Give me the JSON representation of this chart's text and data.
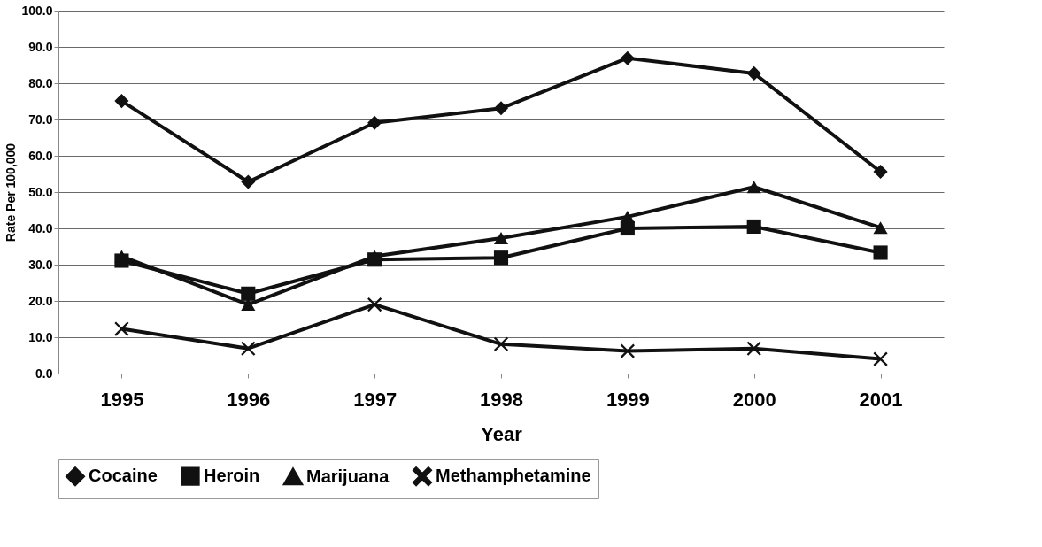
{
  "chart_data": {
    "type": "line",
    "xlabel": "Year",
    "ylabel": "Rate Per 100,000",
    "categories": [
      "1995",
      "1996",
      "1997",
      "1998",
      "1999",
      "2000",
      "2001"
    ],
    "ylim": [
      0,
      100
    ],
    "yticks": [
      {
        "value": 0,
        "label": "0.0"
      },
      {
        "value": 10,
        "label": "10.0"
      },
      {
        "value": 20,
        "label": "20.0"
      },
      {
        "value": 30,
        "label": "30.0"
      },
      {
        "value": 40,
        "label": "40.0"
      },
      {
        "value": 50,
        "label": "50.0"
      },
      {
        "value": 60,
        "label": "60.0"
      },
      {
        "value": 70,
        "label": "70.0"
      },
      {
        "value": 80,
        "label": "80.0"
      },
      {
        "value": 90,
        "label": "90.0"
      },
      {
        "value": 100,
        "label": "100.0"
      }
    ],
    "grid": "y",
    "legend": "bottom",
    "line_style": "solid",
    "series": [
      {
        "name": "Cocaine",
        "color": "#111111",
        "marker": "diamond",
        "values": [
          75.1,
          52.8,
          69.1,
          73.1,
          86.9,
          82.7,
          55.6
        ]
      },
      {
        "name": "Heroin",
        "color": "#111111",
        "marker": "square",
        "values": [
          31.1,
          22.0,
          31.4,
          31.9,
          40.0,
          40.5,
          33.3
        ]
      },
      {
        "name": "Marijuana",
        "color": "#111111",
        "marker": "triangle",
        "values": [
          32.3,
          19.0,
          32.3,
          37.3,
          43.2,
          51.4,
          40.2
        ]
      },
      {
        "name": "Methamphetamine",
        "color": "#111111",
        "marker": "cross",
        "values": [
          12.3,
          6.9,
          19.0,
          8.1,
          6.2,
          6.9,
          4.0
        ]
      }
    ]
  }
}
